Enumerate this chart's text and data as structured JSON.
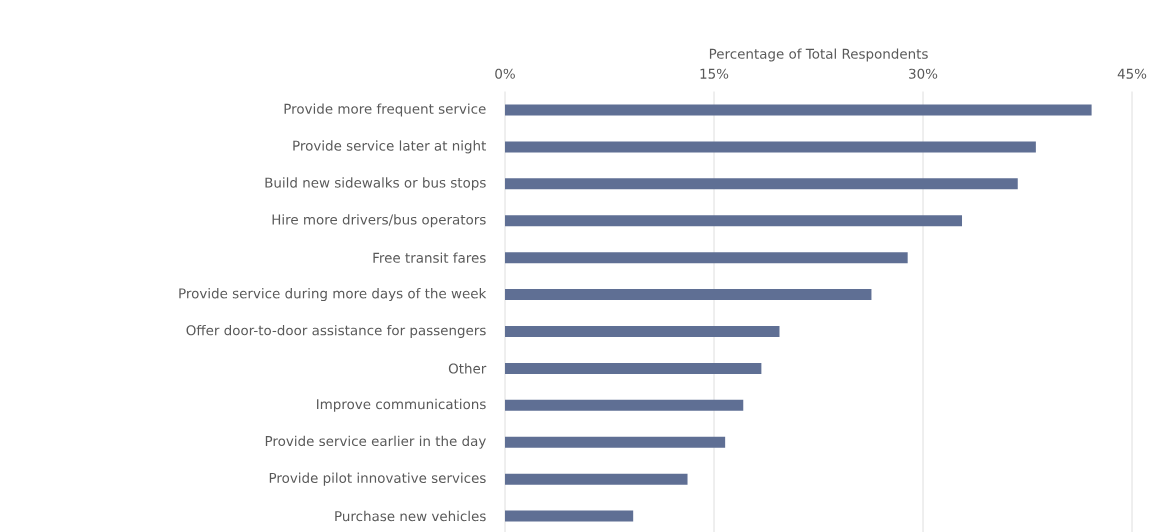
{
  "chart_data": {
    "type": "bar",
    "orientation": "horizontal",
    "xlabel": "Percentage of Total Respondents",
    "categories": [
      "Provide more frequent service",
      "Provide service later at night",
      "Build new sidewalks or bus stops",
      "Hire more drivers/bus operators",
      "Free transit fares",
      "Provide service during more days of the week",
      "Offer door-to-door assistance for passengers",
      "Other",
      "Improve communications",
      "Provide service earlier in the day",
      "Provide pilot innovative services",
      "Purchase new vehicles"
    ],
    "values": [
      42.1,
      38.1,
      36.8,
      32.8,
      28.9,
      26.3,
      19.7,
      18.4,
      17.1,
      15.8,
      13.1,
      9.2
    ],
    "color": "#5f6f94",
    "xlim": [
      0,
      45
    ],
    "xticks": [
      {
        "value": 0,
        "label": "0%"
      },
      {
        "value": 15,
        "label": "15%"
      },
      {
        "value": 30,
        "label": "30%"
      },
      {
        "value": 45,
        "label": "45%"
      }
    ],
    "grid": "x"
  }
}
